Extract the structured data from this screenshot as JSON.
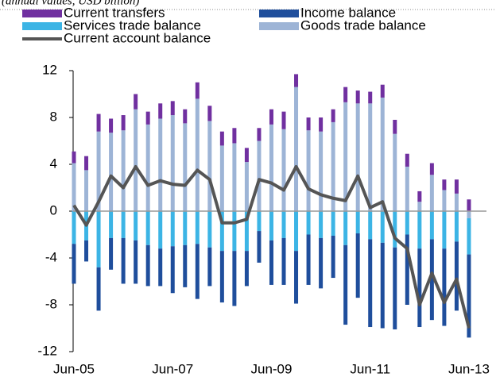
{
  "chart_data": {
    "type": "bar",
    "subtitle": "(annual values, USD billion)",
    "categories": [
      "Jun-05",
      null,
      null,
      null,
      null,
      null,
      null,
      null,
      "Jun-07",
      null,
      null,
      null,
      null,
      null,
      null,
      null,
      "Jun-09",
      null,
      null,
      null,
      null,
      null,
      null,
      null,
      "Jun-11",
      null,
      null,
      null,
      null,
      null,
      null,
      null,
      "Jun-13"
    ],
    "series": [
      {
        "name": "Current transfers",
        "type": "bar",
        "color": "#7030a0",
        "values": [
          1.0,
          1.2,
          1.5,
          1.2,
          1.3,
          1.3,
          1.1,
          1.3,
          1.2,
          1.2,
          1.4,
          1.3,
          1.2,
          1.3,
          1.2,
          1.1,
          1.3,
          1.5,
          1.1,
          1.1,
          1.2,
          1.1,
          1.3,
          1.1,
          1.0,
          1.1,
          1.2,
          1.1,
          0.9,
          1.0,
          0.9,
          1.2,
          1.0
        ]
      },
      {
        "name": "Income balance",
        "type": "bar",
        "color": "#1f4e9c",
        "values": [
          -3.4,
          -1.8,
          -3.7,
          -2.7,
          -3.9,
          -3.7,
          -3.5,
          -3.2,
          -4.0,
          -3.6,
          -4.7,
          -3.3,
          -4.4,
          -4.7,
          -3.0,
          -2.7,
          -3.8,
          -4.0,
          -4.5,
          -4.3,
          -4.3,
          -3.6,
          -6.8,
          -5.5,
          -7.5,
          -7.3,
          -7.0,
          -6.0,
          -6.7,
          -6.9,
          -6.6,
          -5.9,
          -7.1
        ]
      },
      {
        "name": "Services trade balance",
        "type": "bar",
        "color": "#3cb4e5",
        "values": [
          -2.8,
          -2.5,
          -4.8,
          -2.3,
          -2.3,
          -2.5,
          -2.9,
          -3.2,
          -3.0,
          -2.9,
          -2.8,
          -3.1,
          -3.4,
          -3.4,
          -3.4,
          -1.7,
          -2.5,
          -2.3,
          -3.4,
          -2.0,
          -2.3,
          -2.1,
          -2.9,
          -1.9,
          -2.4,
          -2.7,
          -3.1,
          -2.0,
          -3.2,
          -2.4,
          -3.2,
          -2.6,
          -3.1
        ]
      },
      {
        "name": "Goods trade balance",
        "type": "bar",
        "color": "#9db4d6",
        "values": [
          4.1,
          3.5,
          6.8,
          6.7,
          6.9,
          8.7,
          7.4,
          7.9,
          8.2,
          7.5,
          9.6,
          7.7,
          5.6,
          5.8,
          4.2,
          6.0,
          7.4,
          7.0,
          10.6,
          6.9,
          6.8,
          7.6,
          9.3,
          9.2,
          9.2,
          9.7,
          6.6,
          3.8,
          0.8,
          3.1,
          1.8,
          1.5,
          -0.6
        ]
      },
      {
        "name": "Current account balance",
        "type": "line",
        "color": "#555555",
        "values": [
          0.5,
          -1.2,
          0.8,
          3.0,
          2.0,
          3.8,
          2.2,
          2.6,
          2.3,
          2.2,
          3.5,
          2.7,
          -1.0,
          -1.0,
          -0.7,
          2.7,
          2.4,
          1.8,
          3.8,
          1.9,
          1.4,
          1.1,
          0.9,
          3.0,
          0.3,
          0.8,
          -2.3,
          -3.2,
          -8.0,
          -5.3,
          -7.8,
          -5.8,
          -10.0
        ]
      }
    ],
    "stack_order": [
      3,
      0,
      2,
      1
    ],
    "ylim": [
      -12,
      12
    ],
    "yticks": [
      -12,
      -8,
      -4,
      0,
      4,
      8,
      12
    ]
  }
}
